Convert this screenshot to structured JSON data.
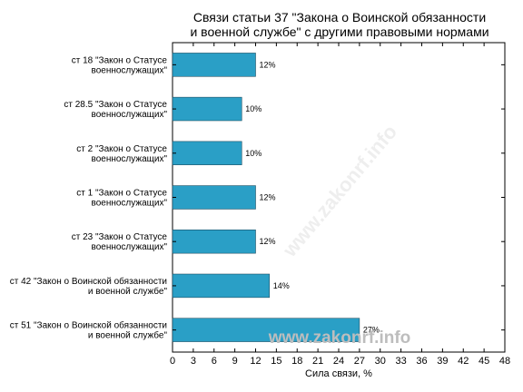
{
  "chart_data": {
    "type": "bar",
    "orientation": "horizontal",
    "title": [
      "Связи статьи 37 \"Закона о Воинской обязанности",
      "и военной службе\" с другими правовыми нормами"
    ],
    "xlabel": "Сила связи, %",
    "ylabel": "",
    "xlim": [
      0,
      48
    ],
    "xticks": [
      0,
      3,
      6,
      9,
      12,
      15,
      18,
      21,
      24,
      27,
      30,
      33,
      36,
      39,
      42,
      45,
      48
    ],
    "grid": false,
    "bar_color": "#2a9fc6",
    "categories": [
      [
        "ст 18 \"Закон о Статусе",
        "военнослужащих\""
      ],
      [
        "ст 28.5 \"Закон о Статусе",
        "военнослужащих\""
      ],
      [
        "ст 2 \"Закон о Статусе",
        "военнослужащих\""
      ],
      [
        "ст 1 \"Закон о Статусе",
        "военнослужащих\""
      ],
      [
        "ст 23 \"Закон о Статусе",
        "военнослужащих\""
      ],
      [
        "ст 42 \"Закон о Воинской обязанности",
        "и военной службе\""
      ],
      [
        "ст 51 \"Закон о Воинской обязанности",
        "и военной службе\""
      ]
    ],
    "values": [
      12,
      10,
      10,
      12,
      12,
      14,
      27
    ],
    "data_labels": [
      "12%",
      "10%",
      "10%",
      "12%",
      "12%",
      "14%",
      "27%"
    ]
  },
  "watermark": "www.zakonrf.info"
}
